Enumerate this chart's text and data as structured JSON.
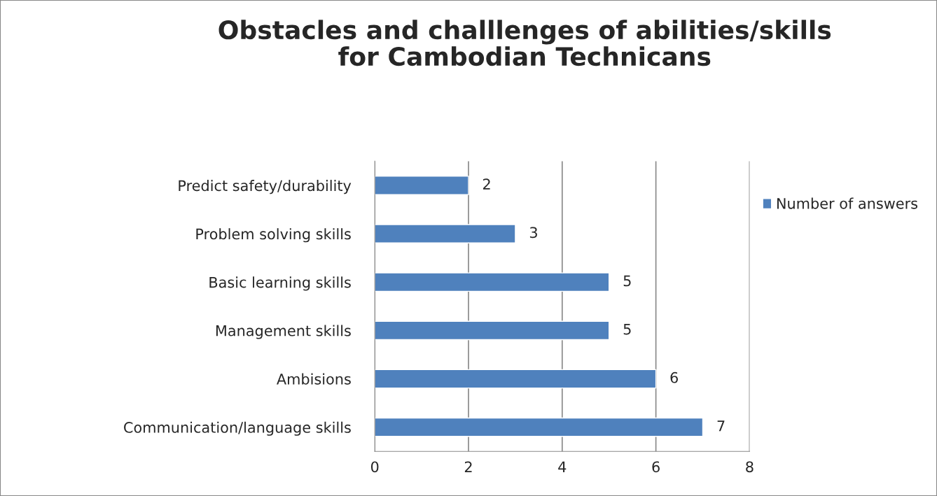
{
  "chart_data": {
    "type": "bar",
    "orientation": "horizontal",
    "title": "Obstacles and challlenges of abilities/skills\nfor Cambodian Technicans",
    "categories": [
      "Predict safety/durability",
      "Problem solving skills",
      "Basic learning skills",
      "Management skills",
      "Ambisions",
      "Communication/language skills"
    ],
    "series": [
      {
        "name": "Number of answers",
        "color": "#4f81bd",
        "values": [
          2,
          3,
          5,
          5,
          6,
          7
        ]
      }
    ],
    "xlim": [
      0,
      8
    ],
    "xticks": [
      0,
      2,
      4,
      6,
      8
    ],
    "grid": "x",
    "legend": "right",
    "data_labels": true
  }
}
